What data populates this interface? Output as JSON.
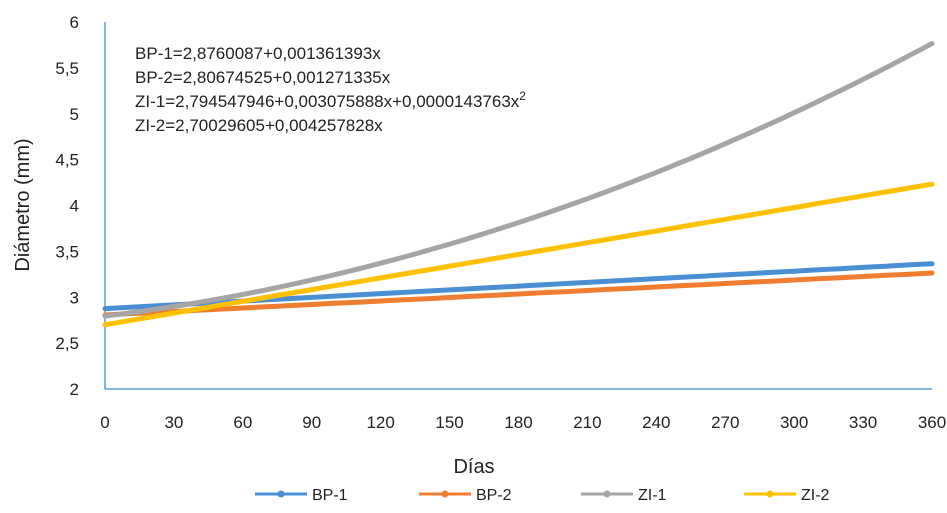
{
  "chart_data": {
    "type": "line",
    "xlabel": "Días",
    "ylabel": "Diámetro (mm)",
    "xlim": [
      0,
      360
    ],
    "ylim": [
      2,
      6
    ],
    "x_ticks": [
      0,
      30,
      60,
      90,
      120,
      150,
      180,
      210,
      240,
      270,
      300,
      330,
      360
    ],
    "y_ticks": [
      "2",
      "2,5",
      "3",
      "3,5",
      "4",
      "4,5",
      "5",
      "5,5",
      "6"
    ],
    "y_tick_values": [
      2,
      2.5,
      3,
      3.5,
      4,
      4.5,
      5,
      5.5,
      6
    ],
    "grid": false,
    "legend_position": "bottom",
    "equations": [
      {
        "text": "BP-1=2,8760087+0,001361393x",
        "sup": ""
      },
      {
        "text": "BP-2=2,80674525+0,001271335x",
        "sup": ""
      },
      {
        "text": "ZI-1=2,794547946+0,003075888x+0,0000143763x",
        "sup": "2"
      },
      {
        "text": "ZI-2=2,70029605+0,004257828x",
        "sup": ""
      }
    ],
    "series": [
      {
        "name": "BP-1",
        "color": "#4a8fd4",
        "coef": [
          2.8760087,
          0.001361393,
          0
        ]
      },
      {
        "name": "BP-2",
        "color": "#ee7d31",
        "coef": [
          2.80674525,
          0.001271335,
          0
        ]
      },
      {
        "name": "ZI-1",
        "color": "#a5a5a5",
        "coef": [
          2.794547946,
          0.003075888,
          1.43763e-05
        ]
      },
      {
        "name": "ZI-2",
        "color": "#ffc000",
        "coef": [
          2.70029605,
          0.004257828,
          0
        ]
      }
    ]
  }
}
